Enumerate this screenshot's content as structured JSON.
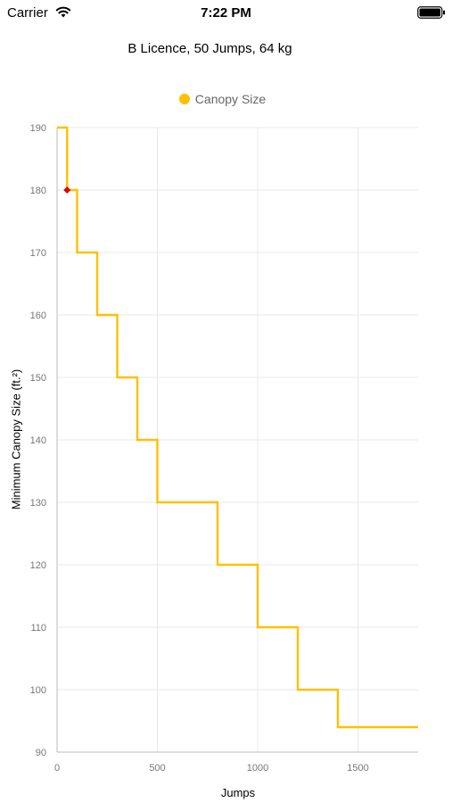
{
  "status_bar": {
    "carrier": "Carrier",
    "time": "7:22 PM"
  },
  "chart_data": {
    "type": "line",
    "step": true,
    "title": "B Licence, 50 Jumps, 64 kg",
    "xlabel": "Jumps",
    "ylabel": "Minimum Canopy Size (ft.²)",
    "xlim": [
      0,
      1800
    ],
    "ylim": [
      90,
      190
    ],
    "x_ticks": [
      0,
      500,
      1000,
      1500
    ],
    "y_ticks": [
      90,
      100,
      110,
      120,
      130,
      140,
      150,
      160,
      170,
      180,
      190
    ],
    "grid": true,
    "legend_position": "top",
    "series": [
      {
        "name": "Canopy Size",
        "color": "#FFC000",
        "steps": [
          {
            "x_start": 0,
            "x_end": 50,
            "y": 190
          },
          {
            "x_start": 50,
            "x_end": 100,
            "y": 180
          },
          {
            "x_start": 100,
            "x_end": 200,
            "y": 170
          },
          {
            "x_start": 200,
            "x_end": 300,
            "y": 160
          },
          {
            "x_start": 300,
            "x_end": 400,
            "y": 150
          },
          {
            "x_start": 400,
            "x_end": 500,
            "y": 140
          },
          {
            "x_start": 500,
            "x_end": 800,
            "y": 130
          },
          {
            "x_start": 800,
            "x_end": 1000,
            "y": 120
          },
          {
            "x_start": 1000,
            "x_end": 1200,
            "y": 110
          },
          {
            "x_start": 1200,
            "x_end": 1400,
            "y": 100
          },
          {
            "x_start": 1400,
            "x_end": 1800,
            "y": 94
          }
        ]
      }
    ],
    "highlight_point": {
      "x": 50,
      "y": 180,
      "color": "#E00000"
    }
  }
}
